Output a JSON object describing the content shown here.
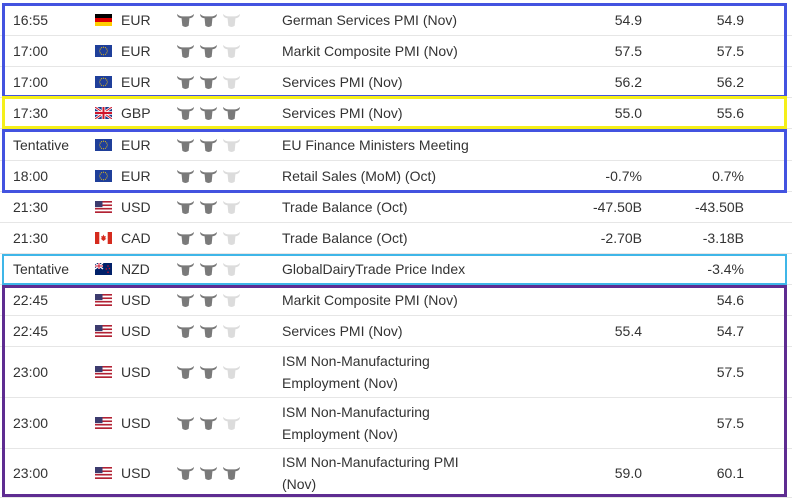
{
  "rows": [
    {
      "time": "16:55",
      "flag": "de",
      "currency": "EUR",
      "importance": 2,
      "event": "German Services PMI (Nov)",
      "actual": "54.9",
      "forecast": "54.9"
    },
    {
      "time": "17:00",
      "flag": "eu",
      "currency": "EUR",
      "importance": 2,
      "event": "Markit Composite PMI (Nov)",
      "actual": "57.5",
      "forecast": "57.5"
    },
    {
      "time": "17:00",
      "flag": "eu",
      "currency": "EUR",
      "importance": 2,
      "event": "Services PMI (Nov)",
      "actual": "56.2",
      "forecast": "56.2"
    },
    {
      "time": "17:30",
      "flag": "gb",
      "currency": "GBP",
      "importance": 3,
      "event": "Services PMI (Nov)",
      "actual": "55.0",
      "forecast": "55.6"
    },
    {
      "time": "Tentative",
      "flag": "eu",
      "currency": "EUR",
      "importance": 2,
      "event": "EU Finance Ministers Meeting",
      "actual": "",
      "forecast": ""
    },
    {
      "time": "18:00",
      "flag": "eu",
      "currency": "EUR",
      "importance": 2,
      "event": "Retail Sales (MoM) (Oct)",
      "actual": "-0.7%",
      "forecast": "0.7%"
    },
    {
      "time": "21:30",
      "flag": "us",
      "currency": "USD",
      "importance": 2,
      "event": "Trade Balance (Oct)",
      "actual": "-47.50B",
      "forecast": "-43.50B"
    },
    {
      "time": "21:30",
      "flag": "ca",
      "currency": "CAD",
      "importance": 2,
      "event": "Trade Balance (Oct)",
      "actual": "-2.70B",
      "forecast": "-3.18B"
    },
    {
      "time": "Tentative",
      "flag": "nz",
      "currency": "NZD",
      "importance": 2,
      "event": "GlobalDairyTrade Price Index",
      "actual": "",
      "forecast": "-3.4%"
    },
    {
      "time": "22:45",
      "flag": "us",
      "currency": "USD",
      "importance": 2,
      "event": "Markit Composite PMI (Nov)",
      "actual": "",
      "forecast": "54.6"
    },
    {
      "time": "22:45",
      "flag": "us",
      "currency": "USD",
      "importance": 2,
      "event": "Services PMI (Nov)",
      "actual": "55.4",
      "forecast": "54.7"
    },
    {
      "time": "23:00",
      "flag": "us",
      "currency": "USD",
      "importance": 2,
      "event": "ISM Non-Manufacturing Employment (Nov)",
      "actual": "",
      "forecast": "57.5"
    },
    {
      "time": "23:00",
      "flag": "us",
      "currency": "USD",
      "importance": 2,
      "event": "ISM Non-Manufacturing Employment (Nov)",
      "actual": "",
      "forecast": "57.5"
    },
    {
      "time": "23:00",
      "flag": "us",
      "currency": "USD",
      "importance": 3,
      "event": "ISM Non-Manufacturing PMI (Nov)",
      "actual": "59.0",
      "forecast": "60.1"
    }
  ],
  "highlight_colors": {
    "eur_group": "#4353e0",
    "gbp_row": "#f5ef1a",
    "nzd_row": "#3fb6e8",
    "usd_group": "#5e2c91"
  },
  "importance_colors": {
    "active": "#7a7a7a",
    "inactive": "#dcdcdc"
  }
}
